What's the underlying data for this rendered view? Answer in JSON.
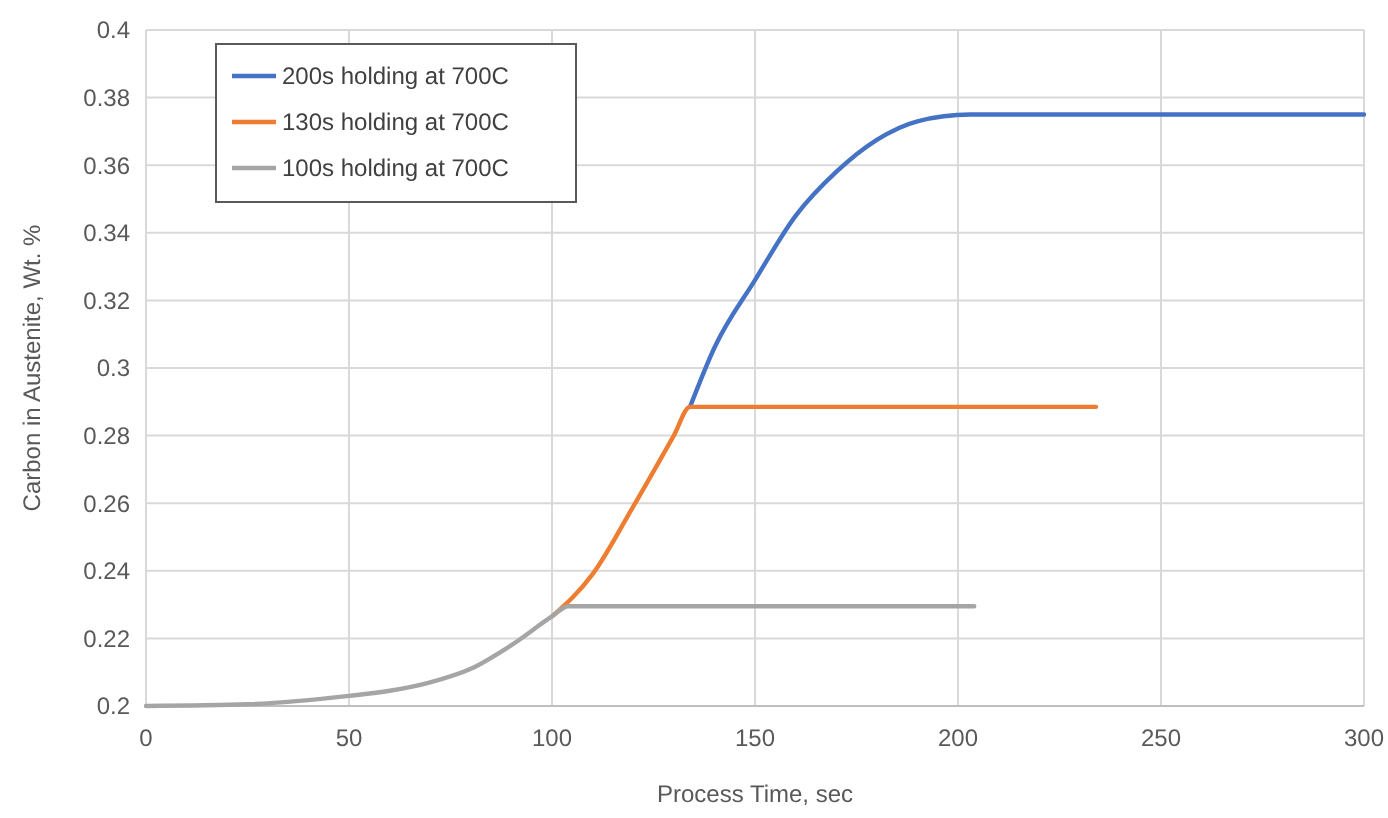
{
  "chart_data": {
    "type": "line",
    "xlabel": "Process Time, sec",
    "ylabel": "Carbon in Austenite, Wt. %",
    "xlim": [
      0,
      300
    ],
    "xticks": [
      0,
      50,
      100,
      150,
      200,
      250,
      300
    ],
    "ylim": [
      0.2,
      0.4
    ],
    "yticks": [
      0.2,
      0.22,
      0.24,
      0.26,
      0.28,
      0.3,
      0.32,
      0.34,
      0.36,
      0.38,
      0.4
    ],
    "grid": true,
    "legend": "top left",
    "marker": "none",
    "line_style": "solid",
    "series": [
      {
        "name": "200s holding at 700C",
        "color": "#4472c4",
        "x": [
          134,
          140,
          150,
          160,
          170,
          180,
          190,
          203,
          300
        ],
        "values": [
          0.2885,
          0.306,
          0.326,
          0.345,
          0.358,
          0.3675,
          0.373,
          0.375,
          0.375
        ]
      },
      {
        "name": "130s holding at 700C",
        "color": "#ed7d31",
        "x": [
          100,
          110,
          120,
          130,
          134,
          234
        ],
        "values": [
          0.2265,
          0.239,
          0.259,
          0.28,
          0.2885,
          0.2885
        ]
      },
      {
        "name": "100s holding at 700C",
        "color": "#a5a5a5",
        "x": [
          0,
          25,
          50,
          60,
          70,
          80,
          90,
          100,
          104,
          204
        ],
        "values": [
          0.2,
          0.2005,
          0.203,
          0.2045,
          0.207,
          0.211,
          0.218,
          0.2265,
          0.2295,
          0.2295
        ]
      }
    ]
  }
}
